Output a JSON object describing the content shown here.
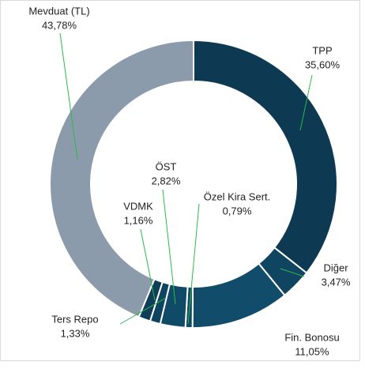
{
  "chart_data": {
    "type": "donut",
    "categories": [
      "TPP",
      "Diğer",
      "Fin. Bonosu",
      "Özel Kira Sert.",
      "ÖST",
      "VDMK",
      "Ters Repo",
      "Mevduat (TL)"
    ],
    "values": [
      35.6,
      3.47,
      11.05,
      0.79,
      2.82,
      1.16,
      1.33,
      43.78
    ],
    "value_labels": [
      "35,60%",
      "3,47%",
      "11,05%",
      "0,79%",
      "2,82%",
      "1,16%",
      "1,33%",
      "43,78%"
    ],
    "colors": [
      "#0d3a52",
      "#0f4560",
      "#114d6a",
      "#0f4a66",
      "#0f4a66",
      "#0e4460",
      "#0e3e58",
      "#8c9bab"
    ],
    "leader_color": "#2eb84a"
  }
}
